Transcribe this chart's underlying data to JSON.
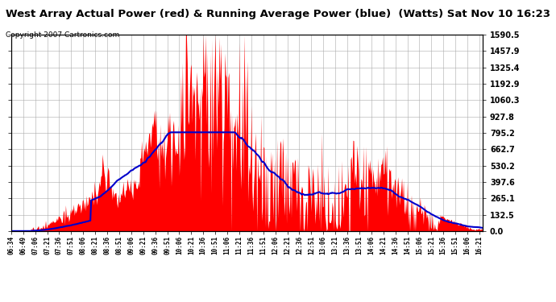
{
  "title": "West Array Actual Power (red) & Running Average Power (blue)  (Watts) Sat Nov 10 16:23",
  "copyright": "Copyright 2007 Cartronics.com",
  "ylabel_right_ticks": [
    0.0,
    132.5,
    265.1,
    397.6,
    530.2,
    662.7,
    795.2,
    927.8,
    1060.3,
    1192.9,
    1325.4,
    1457.9,
    1590.5
  ],
  "ylim": [
    0,
    1590.5
  ],
  "bg_color": "#ffffff",
  "grid_color": "#aaaaaa",
  "fill_color": "#ff0000",
  "avg_color": "#0000cc",
  "title_fontsize": 9.5,
  "copyright_fontsize": 6.5,
  "x_tick_labels": [
    "06:34",
    "06:49",
    "07:06",
    "07:21",
    "07:36",
    "07:51",
    "08:06",
    "08:21",
    "08:36",
    "08:51",
    "09:06",
    "09:21",
    "09:36",
    "09:51",
    "10:06",
    "10:21",
    "10:36",
    "10:51",
    "11:06",
    "11:21",
    "11:36",
    "11:51",
    "12:06",
    "12:21",
    "12:36",
    "12:51",
    "13:06",
    "13:21",
    "13:36",
    "13:51",
    "14:06",
    "14:21",
    "14:36",
    "14:51",
    "15:06",
    "15:21",
    "15:36",
    "15:51",
    "16:06",
    "16:21"
  ]
}
